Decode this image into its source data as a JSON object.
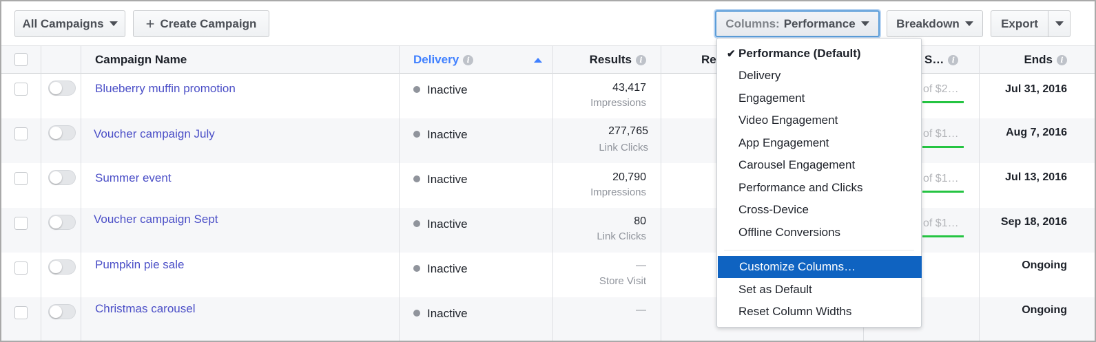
{
  "toolbar": {
    "all_campaigns": "All Campaigns",
    "create_campaign": "Create Campaign",
    "columns_prefix": "Columns:",
    "columns_value": "Performance",
    "breakdown": "Breakdown",
    "export": "Export"
  },
  "table": {
    "headers": {
      "campaign_name": "Campaign Name",
      "delivery": "Delivery",
      "results": "Results",
      "reach_partial": "Re",
      "spent_partial": "S…",
      "ends": "Ends"
    },
    "rows": [
      {
        "name": "Blueberry muffin promotion",
        "delivery": "Inactive",
        "result": "43,417",
        "result_type": "Impressions",
        "spent": "of $2…",
        "ends": "Jul 31, 2016",
        "spent_progress": 1.0
      },
      {
        "name": "Voucher campaign July",
        "delivery": "Inactive",
        "result": "277,765",
        "result_type": "Link Clicks",
        "spent": "of $1…",
        "ends": "Aug 7, 2016",
        "spent_progress": 1.0
      },
      {
        "name": "Summer event",
        "delivery": "Inactive",
        "result": "20,790",
        "result_type": "Impressions",
        "spent": "of $1…",
        "ends": "Jul 13, 2016",
        "spent_progress": 1.0
      },
      {
        "name": "Voucher campaign Sept",
        "delivery": "Inactive",
        "result": "80",
        "result_type": "Link Clicks",
        "spent": "of $1…",
        "ends": "Sep 18, 2016",
        "spent_progress": 1.0
      },
      {
        "name": "Pumpkin pie sale",
        "delivery": "Inactive",
        "result": "—",
        "result_type": "Store Visit",
        "spent": "",
        "ends": "Ongoing"
      },
      {
        "name": "Christmas carousel",
        "delivery": "Inactive",
        "result": "—",
        "result_type": "",
        "spent": "",
        "ends": "Ongoing"
      }
    ]
  },
  "columns_menu": {
    "items": [
      {
        "label": "Performance (Default)",
        "checked": true
      },
      {
        "label": "Delivery"
      },
      {
        "label": "Engagement"
      },
      {
        "label": "Video Engagement"
      },
      {
        "label": "App Engagement"
      },
      {
        "label": "Carousel Engagement"
      },
      {
        "label": "Performance and Clicks"
      },
      {
        "label": "Cross-Device"
      },
      {
        "label": "Offline Conversions"
      }
    ],
    "actions": [
      {
        "label": "Customize Columns…",
        "highlighted": true
      },
      {
        "label": "Set as Default"
      },
      {
        "label": "Reset Column Widths"
      }
    ]
  },
  "colors": {
    "link": "#4b4fc7",
    "delivery_header": "#4080ff",
    "progress": "#25c442",
    "menu_highlight": "#0f63c1"
  }
}
